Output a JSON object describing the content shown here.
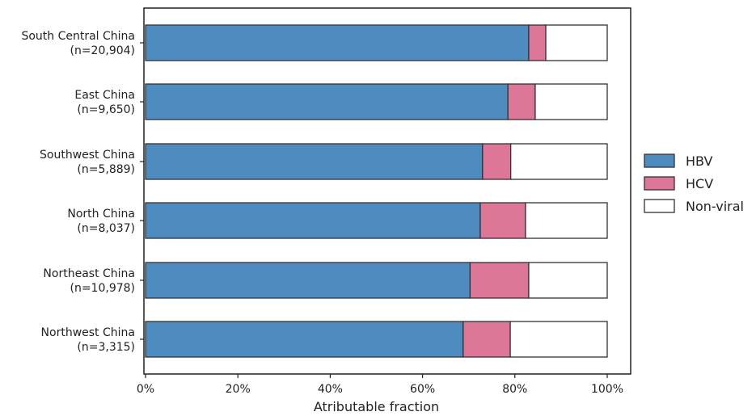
{
  "chart_data": {
    "type": "bar",
    "orientation": "horizontal",
    "stacked": true,
    "categories": [
      [
        "South Central China",
        "(n=20,904)"
      ],
      [
        "East China",
        "(n=9,650)"
      ],
      [
        "Southwest China",
        "(n=5,889)"
      ],
      [
        "North China",
        "(n=8,037)"
      ],
      [
        "Northeast China",
        "(n=10,978)"
      ],
      [
        "Northwest China",
        "(n=3,315)"
      ]
    ],
    "series": [
      {
        "name": "HBV",
        "color": "#4e8bbf",
        "values": [
          83.0,
          78.5,
          73.0,
          72.5,
          70.3,
          68.8
        ]
      },
      {
        "name": "HCV",
        "color": "#dc7798",
        "values": [
          3.7,
          5.9,
          6.1,
          9.8,
          12.7,
          10.2
        ]
      },
      {
        "name": "Non-viral",
        "color": "#ffffff",
        "values": [
          13.3,
          15.6,
          20.9,
          17.7,
          17.0,
          21.0
        ]
      }
    ],
    "xlabel": "Atributable fraction",
    "ylabel": "",
    "xlim": [
      0,
      100
    ],
    "xticks": [
      "0%",
      "20%",
      "40%",
      "60%",
      "80%",
      "100%"
    ],
    "grid": false,
    "legend": "right"
  }
}
